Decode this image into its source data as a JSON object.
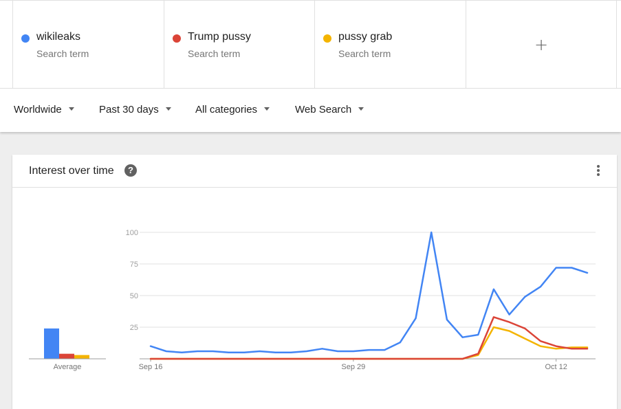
{
  "terms": [
    {
      "name": "wikileaks",
      "subtitle": "Search term",
      "color": "#4285f4"
    },
    {
      "name": "Trump pussy",
      "subtitle": "Search term",
      "color": "#db4437"
    },
    {
      "name": "pussy grab",
      "subtitle": "Search term",
      "color": "#f4b400"
    }
  ],
  "add_term_icon": "plus-icon",
  "add_term_label": "+",
  "filters": {
    "region": "Worldwide",
    "time": "Past 30 days",
    "category": "All categories",
    "search_type": "Web Search"
  },
  "card": {
    "title": "Interest over time",
    "help_icon": "help-icon",
    "help_label": "?",
    "more_icon": "more-vert-icon"
  },
  "chart_data": {
    "type": "line",
    "y_ticks": [
      "100",
      "75",
      "50",
      "25"
    ],
    "ylim": [
      0,
      100
    ],
    "grid": true,
    "x_tick_labels": [
      {
        "label": "Sep 16",
        "index": 0
      },
      {
        "label": "Sep 29",
        "index": 13
      },
      {
        "label": "Oct 12",
        "index": 26
      }
    ],
    "series": [
      {
        "name": "wikileaks",
        "color": "#4285f4",
        "values": [
          10,
          6,
          5,
          6,
          6,
          5,
          5,
          6,
          5,
          5,
          6,
          8,
          6,
          6,
          7,
          7,
          13,
          32,
          100,
          31,
          17,
          19,
          55,
          35,
          49,
          57,
          72,
          72,
          68
        ]
      },
      {
        "name": "Trump pussy",
        "color": "#db4437",
        "values": [
          0,
          0,
          0,
          0,
          0,
          0,
          0,
          0,
          0,
          0,
          0,
          0,
          0,
          0,
          0,
          0,
          0,
          0,
          0,
          0,
          0,
          4,
          33,
          29,
          24,
          14,
          10,
          8,
          8
        ]
      },
      {
        "name": "pussy grab",
        "color": "#f4b400",
        "values": [
          0,
          0,
          0,
          0,
          0,
          0,
          0,
          0,
          0,
          0,
          0,
          0,
          0,
          0,
          0,
          0,
          0,
          0,
          0,
          0,
          0,
          3,
          25,
          22,
          16,
          10,
          8,
          9,
          9
        ]
      }
    ],
    "average": {
      "label": "Average",
      "values": [
        24,
        4,
        3
      ]
    }
  }
}
